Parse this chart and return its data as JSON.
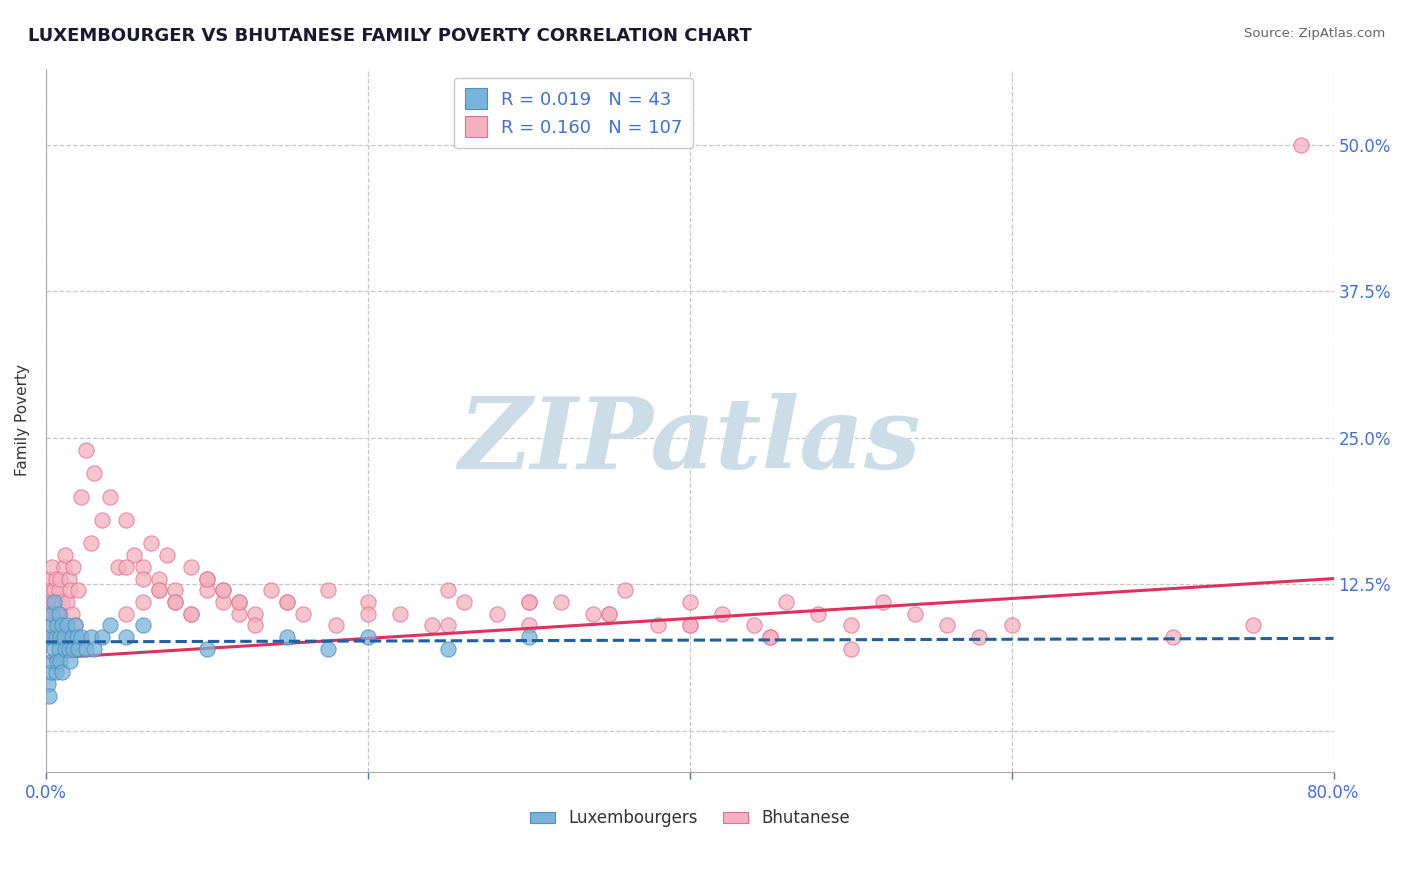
{
  "title": "LUXEMBOURGER VS BHUTANESE FAMILY POVERTY CORRELATION CHART",
  "source": "Source: ZipAtlas.com",
  "ylabel": "Family Poverty",
  "xlim": [
    0.0,
    0.8
  ],
  "ylim": [
    -0.035,
    0.565
  ],
  "xtick_vals": [
    0.0,
    0.2,
    0.4,
    0.6,
    0.8
  ],
  "xtick_labels": [
    "0.0%",
    "",
    "",
    "",
    "80.0%"
  ],
  "ytick_vals": [
    0.0,
    0.125,
    0.25,
    0.375,
    0.5
  ],
  "ytick_labels": [
    "",
    "12.5%",
    "25.0%",
    "37.5%",
    "50.0%"
  ],
  "grid_color": "#c8c8c8",
  "background_color": "#ffffff",
  "watermark": "ZIPatlas",
  "watermark_color": "#ccdde8",
  "lux_color": "#7ab3d9",
  "lux_edge_color": "#4a8fbf",
  "lux_trend_color": "#2060a0",
  "bhu_color": "#f4b0c0",
  "bhu_edge_color": "#e07090",
  "bhu_trend_color": "#e03060",
  "lux_R": "0.019",
  "lux_N": "43",
  "bhu_R": "0.160",
  "bhu_N": "107",
  "lux_trend_x": [
    0.0,
    0.8
  ],
  "lux_trend_y": [
    0.076,
    0.079
  ],
  "bhu_trend_x": [
    0.0,
    0.8
  ],
  "bhu_trend_y": [
    0.062,
    0.13
  ],
  "lux_x": [
    0.001,
    0.002,
    0.002,
    0.003,
    0.003,
    0.004,
    0.004,
    0.005,
    0.005,
    0.006,
    0.006,
    0.007,
    0.007,
    0.008,
    0.008,
    0.009,
    0.009,
    0.01,
    0.01,
    0.011,
    0.012,
    0.013,
    0.014,
    0.015,
    0.016,
    0.017,
    0.018,
    0.019,
    0.02,
    0.022,
    0.025,
    0.028,
    0.03,
    0.035,
    0.04,
    0.05,
    0.06,
    0.1,
    0.15,
    0.175,
    0.2,
    0.25,
    0.3
  ],
  "lux_y": [
    0.04,
    0.03,
    0.08,
    0.05,
    0.09,
    0.06,
    0.1,
    0.07,
    0.11,
    0.05,
    0.08,
    0.06,
    0.09,
    0.07,
    0.1,
    0.06,
    0.08,
    0.05,
    0.09,
    0.08,
    0.07,
    0.09,
    0.07,
    0.06,
    0.08,
    0.07,
    0.09,
    0.08,
    0.07,
    0.08,
    0.07,
    0.08,
    0.07,
    0.08,
    0.09,
    0.08,
    0.09,
    0.07,
    0.08,
    0.07,
    0.08,
    0.07,
    0.08
  ],
  "bhu_x": [
    0.001,
    0.001,
    0.002,
    0.002,
    0.003,
    0.003,
    0.004,
    0.004,
    0.005,
    0.005,
    0.006,
    0.006,
    0.007,
    0.007,
    0.008,
    0.008,
    0.009,
    0.009,
    0.01,
    0.01,
    0.011,
    0.012,
    0.013,
    0.014,
    0.015,
    0.016,
    0.017,
    0.018,
    0.02,
    0.022,
    0.025,
    0.028,
    0.03,
    0.035,
    0.04,
    0.045,
    0.05,
    0.055,
    0.06,
    0.065,
    0.07,
    0.075,
    0.08,
    0.09,
    0.1,
    0.11,
    0.12,
    0.13,
    0.14,
    0.15,
    0.16,
    0.175,
    0.18,
    0.2,
    0.22,
    0.24,
    0.26,
    0.28,
    0.3,
    0.32,
    0.34,
    0.36,
    0.38,
    0.4,
    0.42,
    0.44,
    0.46,
    0.48,
    0.5,
    0.52,
    0.54,
    0.56,
    0.58,
    0.6,
    0.7,
    0.75,
    0.78,
    0.05,
    0.06,
    0.07,
    0.08,
    0.09,
    0.1,
    0.11,
    0.12,
    0.13,
    0.15,
    0.2,
    0.25,
    0.3,
    0.35,
    0.4,
    0.45,
    0.5,
    0.25,
    0.3,
    0.35,
    0.4,
    0.45,
    0.05,
    0.06,
    0.07,
    0.08,
    0.09,
    0.1,
    0.11,
    0.12
  ],
  "bhu_y": [
    0.1,
    0.13,
    0.08,
    0.11,
    0.09,
    0.12,
    0.11,
    0.14,
    0.08,
    0.12,
    0.1,
    0.13,
    0.09,
    0.11,
    0.08,
    0.12,
    0.1,
    0.13,
    0.09,
    0.11,
    0.14,
    0.15,
    0.11,
    0.13,
    0.12,
    0.1,
    0.14,
    0.09,
    0.12,
    0.2,
    0.24,
    0.16,
    0.22,
    0.18,
    0.2,
    0.14,
    0.18,
    0.15,
    0.14,
    0.16,
    0.13,
    0.15,
    0.12,
    0.14,
    0.13,
    0.12,
    0.11,
    0.1,
    0.12,
    0.11,
    0.1,
    0.12,
    0.09,
    0.11,
    0.1,
    0.09,
    0.11,
    0.1,
    0.09,
    0.11,
    0.1,
    0.12,
    0.09,
    0.11,
    0.1,
    0.09,
    0.11,
    0.1,
    0.09,
    0.11,
    0.1,
    0.09,
    0.08,
    0.09,
    0.08,
    0.09,
    0.5,
    0.1,
    0.11,
    0.12,
    0.11,
    0.1,
    0.12,
    0.11,
    0.1,
    0.09,
    0.11,
    0.1,
    0.09,
    0.11,
    0.1,
    0.09,
    0.08,
    0.07,
    0.12,
    0.11,
    0.1,
    0.09,
    0.08,
    0.14,
    0.13,
    0.12,
    0.11,
    0.1,
    0.13,
    0.12,
    0.11
  ]
}
